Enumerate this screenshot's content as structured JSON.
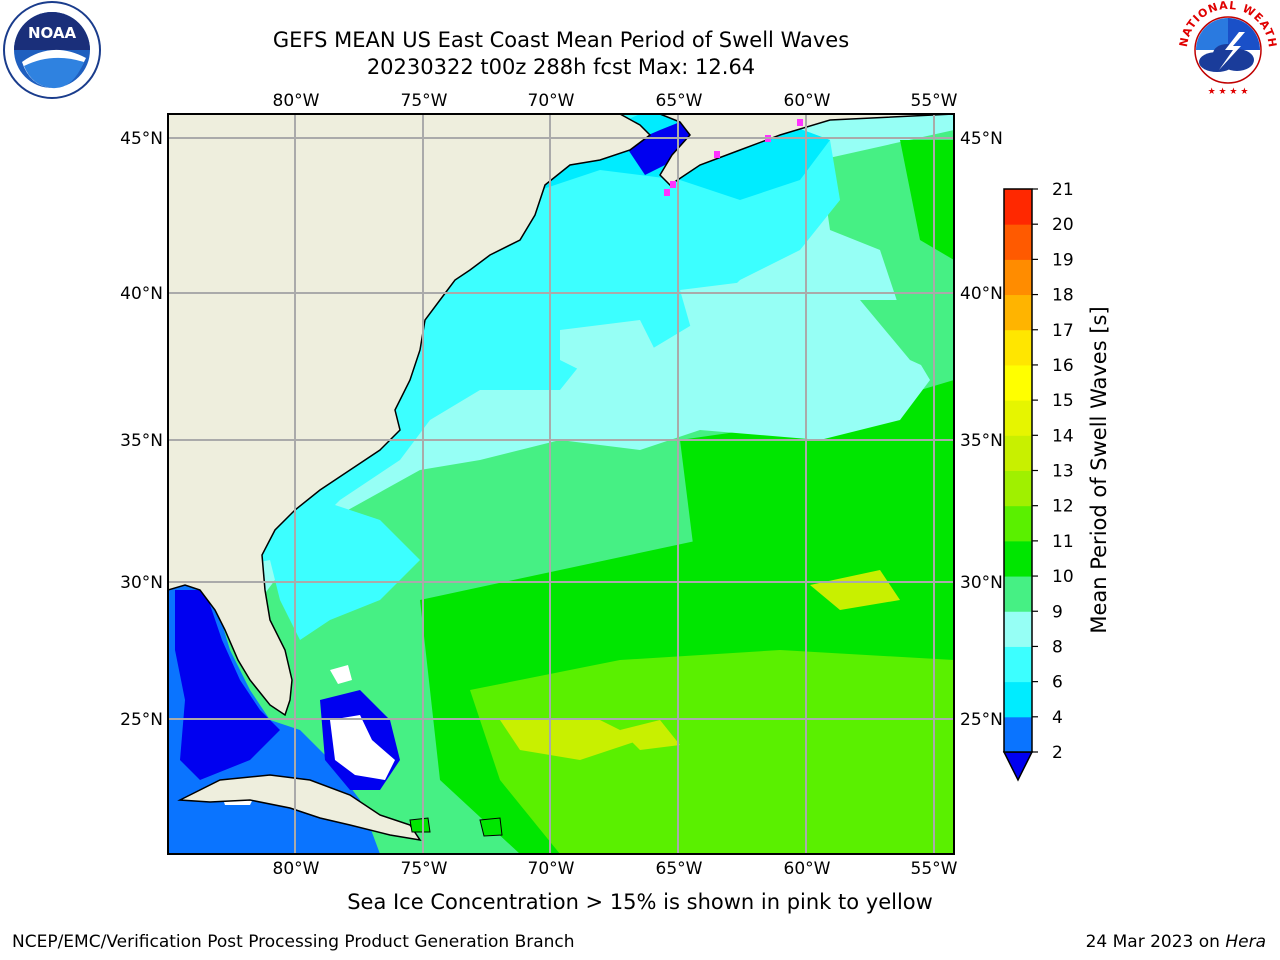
{
  "header": {
    "title_line1": "GEFS MEAN US East Coast Mean Period of Swell Waves",
    "title_line2": "20230322 t00z 288h fcst   Max: 12.64"
  },
  "logos": {
    "left": "noaa-logo",
    "left_text": "NOAA",
    "right": "nws-logo",
    "right_text": "NATIONAL WEATHER SERVICE"
  },
  "map": {
    "lon_labels": [
      "80°W",
      "75°W",
      "70°W",
      "65°W",
      "60°W",
      "55°W"
    ],
    "lat_labels": [
      "45°N",
      "40°N",
      "35°N",
      "30°N",
      "25°N"
    ],
    "ocean_zones_color": {
      "deep_blue": "#0000f0",
      "blue": "#0a74ff",
      "cyan": "#00f0ff",
      "aqua": "#3cffff",
      "light_aqua": "#96fff5",
      "light_green": "#46f084",
      "green": "#00e600",
      "bright_green": "#5af000",
      "yellow_green": "#c8f000",
      "land": "#eeeedd"
    }
  },
  "colorbar": {
    "label": "Mean Period of Swell Waves [s]",
    "ticks": [
      "2",
      "4",
      "6",
      "8",
      "9",
      "10",
      "11",
      "12",
      "13",
      "14",
      "15",
      "16",
      "17",
      "18",
      "19",
      "20",
      "21"
    ],
    "colors": [
      "#0a74ff",
      "#00ecff",
      "#3cffff",
      "#96fff5",
      "#46f084",
      "#00e600",
      "#5af000",
      "#a0f000",
      "#c8f000",
      "#e6f500",
      "#ffff00",
      "#ffe600",
      "#ffb400",
      "#ff8c00",
      "#ff5a00",
      "#ff2800"
    ],
    "extend_color": "#0000f0"
  },
  "note": "Sea Ice Concentration > 15% is shown in pink to yellow",
  "footer": {
    "left": "NCEP/EMC/Verification Post Processing Product Generation Branch",
    "right_date": "24 Mar 2023 on ",
    "right_host": "Hera"
  }
}
